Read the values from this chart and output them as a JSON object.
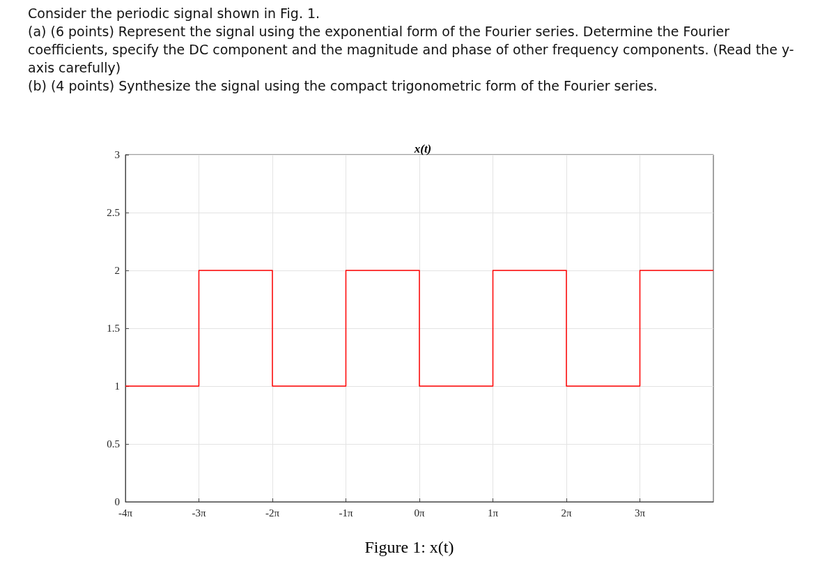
{
  "chart_data": {
    "type": "step",
    "title": "x(t)",
    "annotations": [
      "Consider the periodic signal shown in Fig. 1.",
      "(a) (6 points) Represent the signal using the exponential form of the Fourier series. Determine the Fourier coefficients, specify the DC component and the magnitude and phase of other frequency components. (Read the y-axis carefully)",
      "(b) (4 points) Synthesize the signal using the compact trigonometric form of the Fourier series.",
      "Figure 1: x(t)"
    ],
    "x": [
      -12.566,
      -9.425,
      -6.283,
      -3.142,
      0,
      3.142,
      6.283,
      9.425,
      12.566
    ],
    "series": [
      {
        "color": "#ff0000",
        "values": [
          1,
          2,
          1,
          2,
          1,
          2,
          1,
          2,
          2
        ]
      }
    ],
    "xlim": [
      -12.566,
      12.566
    ],
    "xticks": [
      {
        "value": -12.566,
        "label": "-4π"
      },
      {
        "value": -9.425,
        "label": "-3π"
      },
      {
        "value": -6.283,
        "label": "-2π"
      },
      {
        "value": -3.142,
        "label": "-1π"
      },
      {
        "value": 0,
        "label": "0π"
      },
      {
        "value": 3.142,
        "label": "1π"
      },
      {
        "value": 6.283,
        "label": "2π"
      },
      {
        "value": 9.425,
        "label": "3π"
      }
    ],
    "ylim": [
      0,
      3
    ],
    "yticks": [
      0,
      0.5,
      1,
      1.5,
      2,
      2.5,
      3
    ],
    "grid": true,
    "marker": "none",
    "line_style": "solid"
  }
}
